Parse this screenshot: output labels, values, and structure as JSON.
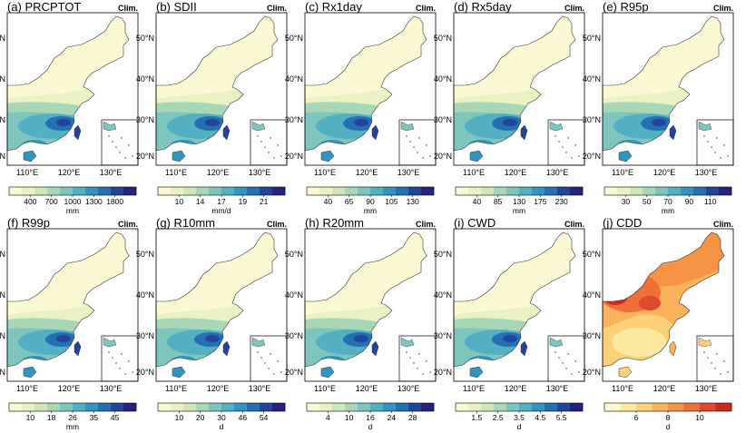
{
  "figure_label": "Clim.",
  "palettes": {
    "wet": [
      "#fbf9d3",
      "#eaf1c2",
      "#cfe6b7",
      "#a7d7b6",
      "#7ec5bd",
      "#52b0c2",
      "#3294c0",
      "#2570b0",
      "#23449b",
      "#26237c"
    ],
    "dry": [
      "#fffad0",
      "#fee9a0",
      "#fdd07a",
      "#fbb35b",
      "#f69445",
      "#ee7038",
      "#de4a2c",
      "#c92b23"
    ]
  },
  "panels": [
    {
      "title": "(a) PRCPTOT",
      "ticks": [
        "400",
        "700",
        "1000",
        "1300",
        "1800"
      ],
      "unit": "mm",
      "palette": "wet"
    },
    {
      "title": "(b) SDII",
      "ticks": [
        "10",
        "14",
        "17",
        "19",
        "21"
      ],
      "unit": "mm/d",
      "palette": "wet"
    },
    {
      "title": "(c) Rx1day",
      "ticks": [
        "40",
        "65",
        "90",
        "105",
        "130"
      ],
      "unit": "mm",
      "palette": "wet"
    },
    {
      "title": "(d) Rx5day",
      "ticks": [
        "40",
        "85",
        "130",
        "175",
        "230"
      ],
      "unit": "mm",
      "palette": "wet"
    },
    {
      "title": "(e) R95p",
      "ticks": [
        "30",
        "50",
        "70",
        "90",
        "110"
      ],
      "unit": "mm",
      "palette": "wet"
    },
    {
      "title": "(f) R99p",
      "ticks": [
        "10",
        "18",
        "26",
        "35",
        "45"
      ],
      "unit": "mm",
      "palette": "wet"
    },
    {
      "title": "(g) R10mm",
      "ticks": [
        "10",
        "20",
        "30",
        "46",
        "54"
      ],
      "unit": "d",
      "palette": "wet"
    },
    {
      "title": "(h) R20mm",
      "ticks": [
        "4",
        "10",
        "16",
        "24",
        "28"
      ],
      "unit": "d",
      "palette": "wet"
    },
    {
      "title": "(i) CWD",
      "ticks": [
        "1.5",
        "2.5",
        "3.5",
        "4.5",
        "5.5"
      ],
      "unit": "d",
      "palette": "wet"
    },
    {
      "title": "(j) CDD",
      "ticks": [
        "6",
        "8",
        "10"
      ],
      "unit": "d",
      "palette": "dry"
    }
  ],
  "lat_labels": [
    "50°N",
    "40°N",
    "30°N",
    "20°N"
  ],
  "lon_labels": [
    "110°E",
    "120°E",
    "130°E"
  ]
}
